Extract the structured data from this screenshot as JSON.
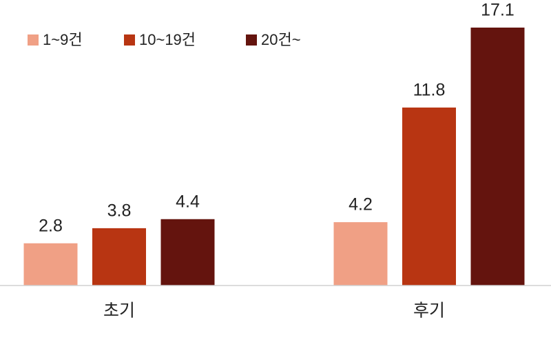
{
  "chart_data": {
    "type": "bar",
    "categories": [
      "초기",
      "후기"
    ],
    "series": [
      {
        "name": "1~9건",
        "color": "#f0a085",
        "values": [
          2.8,
          4.2
        ]
      },
      {
        "name": "10~19건",
        "color": "#b83512",
        "values": [
          3.8,
          11.8
        ]
      },
      {
        "name": "20건~",
        "color": "#64140e",
        "values": [
          4.4,
          17.1
        ]
      }
    ],
    "legend": "top-left"
  }
}
